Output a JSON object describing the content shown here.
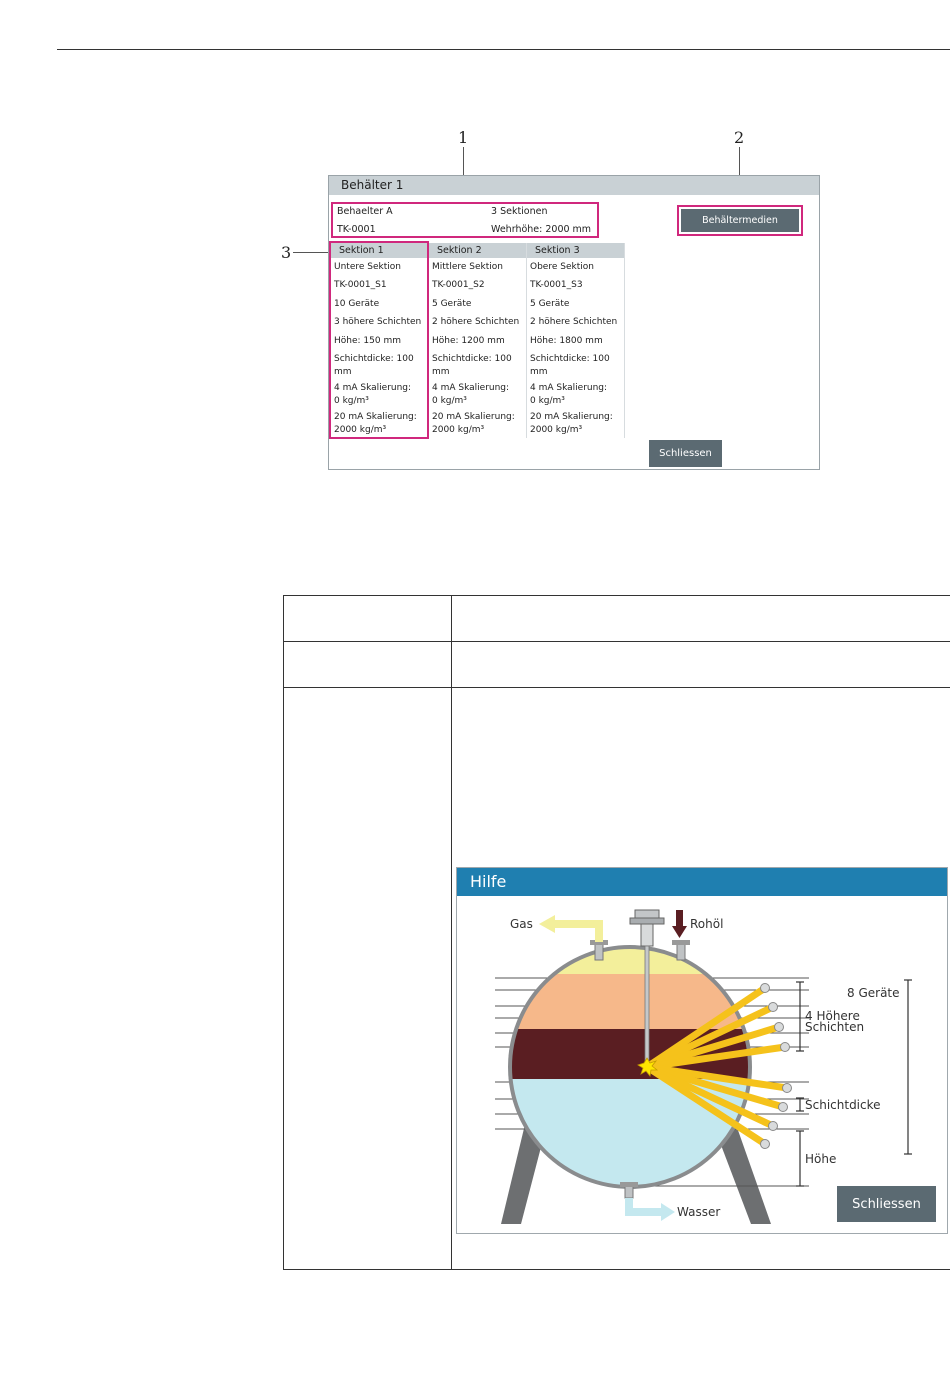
{
  "callouts": {
    "c1": "1",
    "c2": "2",
    "c3": "3"
  },
  "dialog": {
    "title": "Behälter 1",
    "info": {
      "name": "Behaelter A",
      "id": "TK-0001",
      "sections": "3 Sektionen",
      "weir_height": "Wehrhöhe: 2000 mm"
    },
    "media_button": "Behältermedien",
    "close_button": "Schliessen",
    "sections_list": [
      {
        "header": "Sektion 1",
        "rows": [
          "Untere Sektion",
          "TK-0001_S1",
          "10 Geräte",
          "3 höhere Schichten",
          "Höhe: 150 mm",
          "Schichtdicke: 100\nmm",
          "4 mA Skalierung:\n 0 kg/m³",
          "20 mA Skalierung:\n 2000 kg/m³"
        ]
      },
      {
        "header": "Sektion 2",
        "rows": [
          "Mittlere Sektion",
          "TK-0001_S2",
          "5 Geräte",
          "2 höhere Schichten",
          "Höhe: 1200 mm",
          "Schichtdicke: 100\nmm",
          "4 mA Skalierung:\n 0 kg/m³",
          "20 mA Skalierung:\n 2000 kg/m³"
        ]
      },
      {
        "header": "Sektion 3",
        "rows": [
          "Obere Sektion",
          "TK-0001_S3",
          "5 Geräte",
          "2 höhere Schichten",
          "Höhe: 1800 mm",
          "Schichtdicke: 100\nmm",
          "4 mA Skalierung:\n 0 kg/m³",
          "20 mA Skalierung:\n 2000 kg/m³"
        ]
      }
    ]
  },
  "help": {
    "title": "Hilfe",
    "labels": {
      "gas": "Gas",
      "crude": "Rohöl",
      "devices": "8 Geräte",
      "higher_layers": "4 Höhere\nSchichten",
      "layer_thickness": "Schichtdicke",
      "height": "Höhe",
      "water": "Wasser"
    },
    "close_button": "Schliessen"
  },
  "colors": {
    "highlight": "#d0287d",
    "button": "#5b6a72",
    "help_header": "#1f7fb0",
    "gas_layer": "#f3ef9b",
    "oil_layer": "#f6b88a",
    "emulsion_layer": "#5a1e22",
    "water_layer": "#c4e8ef",
    "sensor_beam": "#f5c21b"
  }
}
